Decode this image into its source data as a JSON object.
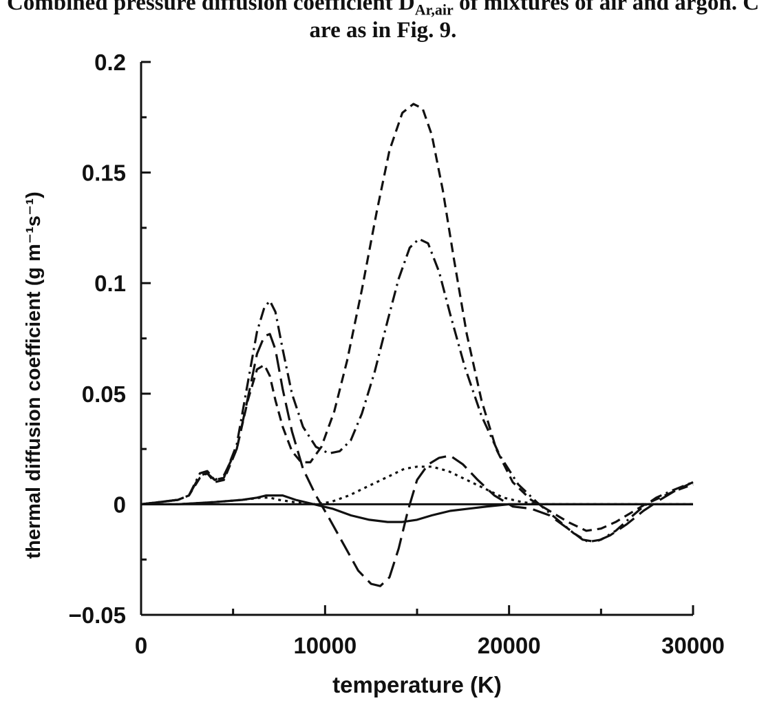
{
  "caption": {
    "line1_pre": "Combined pressure diffusion coefficient D",
    "line1_sub": "Ar,air",
    "line1_post": " of mixtures of air and argon. C",
    "line2": "are as in Fig. 9."
  },
  "chart_data": {
    "type": "line",
    "title": "",
    "xlabel": "temperature (K)",
    "ylabel": "thermal diffusion coefficient (g m⁻¹s⁻¹)",
    "xlim": [
      0,
      30000
    ],
    "ylim": [
      -0.05,
      0.2
    ],
    "xticks": [
      0,
      10000,
      20000,
      30000
    ],
    "xtick_labels": [
      "0",
      "10000",
      "20000",
      "30000"
    ],
    "xminor": [
      5000,
      15000,
      25000
    ],
    "yticks": [
      -0.05,
      0,
      0.05,
      0.1,
      0.15,
      0.2
    ],
    "ytick_labels": [
      "−0.05",
      "0",
      "0.05",
      "0.1",
      "0.15",
      "0.2"
    ],
    "yminor": [
      -0.025,
      0.025,
      0.075,
      0.125,
      0.175
    ],
    "grid": false,
    "zero_line": true,
    "series": [
      {
        "style": "long-dash",
        "x": [
          0,
          2000,
          2600,
          3200,
          3600,
          4000,
          4500,
          5200,
          5800,
          6300,
          6700,
          7000,
          7300,
          7700,
          8200,
          8800,
          9500,
          10200,
          11000,
          11800,
          12500,
          13000,
          13500,
          14000,
          14500,
          15000,
          15600,
          16200,
          16800,
          17500,
          18300,
          19200,
          20200,
          21200,
          22200,
          23200,
          24000,
          24700,
          25500,
          26400,
          27300,
          28200,
          29000,
          30000
        ],
        "y": [
          0,
          0.002,
          0.004,
          0.013,
          0.014,
          0.011,
          0.013,
          0.025,
          0.048,
          0.068,
          0.076,
          0.077,
          0.07,
          0.052,
          0.033,
          0.016,
          0.004,
          -0.006,
          -0.018,
          -0.03,
          -0.036,
          -0.037,
          -0.033,
          -0.02,
          -0.003,
          0.011,
          0.018,
          0.021,
          0.022,
          0.018,
          0.011,
          0.004,
          -0.001,
          -0.002,
          -0.005,
          -0.011,
          -0.016,
          -0.017,
          -0.014,
          -0.009,
          -0.003,
          0.002,
          0.006,
          0.01
        ]
      },
      {
        "style": "dash-dot",
        "x": [
          0,
          2000,
          2600,
          3200,
          3600,
          4000,
          4500,
          5200,
          5800,
          6300,
          6700,
          7000,
          7300,
          7700,
          8200,
          8800,
          9500,
          10200,
          10800,
          11400,
          12000,
          12700,
          13400,
          14000,
          14600,
          15100,
          15600,
          16200,
          16800,
          17600,
          18500,
          19500,
          20500,
          21500,
          22500,
          23500,
          24300,
          25000,
          25800,
          26600,
          27300,
          28000,
          28800,
          30000
        ],
        "y": [
          0,
          0.002,
          0.004,
          0.014,
          0.015,
          0.011,
          0.012,
          0.027,
          0.055,
          0.078,
          0.089,
          0.092,
          0.087,
          0.07,
          0.05,
          0.035,
          0.026,
          0.023,
          0.024,
          0.029,
          0.041,
          0.06,
          0.083,
          0.102,
          0.116,
          0.12,
          0.118,
          0.105,
          0.086,
          0.062,
          0.04,
          0.022,
          0.009,
          0.001,
          -0.006,
          -0.013,
          -0.017,
          -0.016,
          -0.012,
          -0.006,
          -0.001,
          0.003,
          0.006,
          0.01
        ]
      },
      {
        "style": "dashed",
        "x": [
          0,
          2000,
          2600,
          3200,
          3600,
          4000,
          4500,
          5200,
          5800,
          6300,
          6700,
          7000,
          7300,
          7700,
          8200,
          8700,
          9200,
          9800,
          10500,
          11200,
          12000,
          12800,
          13500,
          14200,
          14800,
          15300,
          15800,
          16400,
          17000,
          17700,
          18500,
          19300,
          20200,
          21200,
          22200,
          23200,
          24200,
          25000,
          25800,
          26600,
          27400,
          28200,
          29000,
          30000
        ],
        "y": [
          0,
          0.002,
          0.004,
          0.012,
          0.014,
          0.01,
          0.011,
          0.025,
          0.047,
          0.061,
          0.063,
          0.058,
          0.047,
          0.035,
          0.024,
          0.019,
          0.019,
          0.026,
          0.042,
          0.065,
          0.097,
          0.132,
          0.16,
          0.177,
          0.181,
          0.179,
          0.167,
          0.142,
          0.111,
          0.077,
          0.047,
          0.025,
          0.01,
          0.002,
          -0.003,
          -0.008,
          -0.012,
          -0.011,
          -0.008,
          -0.004,
          0,
          0.003,
          0.006,
          0.009
        ]
      },
      {
        "style": "dotted",
        "x": [
          0,
          2000,
          4000,
          5500,
          6500,
          7000,
          7500,
          8300,
          9300,
          10300,
          11300,
          12300,
          13300,
          14300,
          15000,
          15800,
          16700,
          17700,
          18700,
          19700,
          20700,
          21700,
          22700,
          24000,
          26000,
          28000,
          30000
        ],
        "y": [
          0,
          0,
          0.001,
          0.002,
          0.003,
          0.003,
          0.002,
          0.001,
          0,
          0.001,
          0.004,
          0.008,
          0.012,
          0.016,
          0.017,
          0.017,
          0.015,
          0.011,
          0.007,
          0.003,
          0.001,
          0,
          0,
          0,
          0,
          0,
          0
        ]
      },
      {
        "style": "solid",
        "x": [
          0,
          2000,
          4000,
          5500,
          6300,
          6800,
          7200,
          7700,
          8400,
          9400,
          10400,
          11400,
          12400,
          13400,
          14200,
          15000,
          15800,
          16800,
          17800,
          18800,
          20000,
          21500,
          23000,
          25000,
          27000,
          30000
        ],
        "y": [
          0,
          0,
          0.001,
          0.002,
          0.003,
          0.004,
          0.004,
          0.004,
          0.002,
          0,
          -0.002,
          -0.005,
          -0.007,
          -0.008,
          -0.008,
          -0.007,
          -0.005,
          -0.003,
          -0.002,
          -0.001,
          0,
          0,
          0,
          0,
          0,
          0
        ]
      }
    ]
  }
}
